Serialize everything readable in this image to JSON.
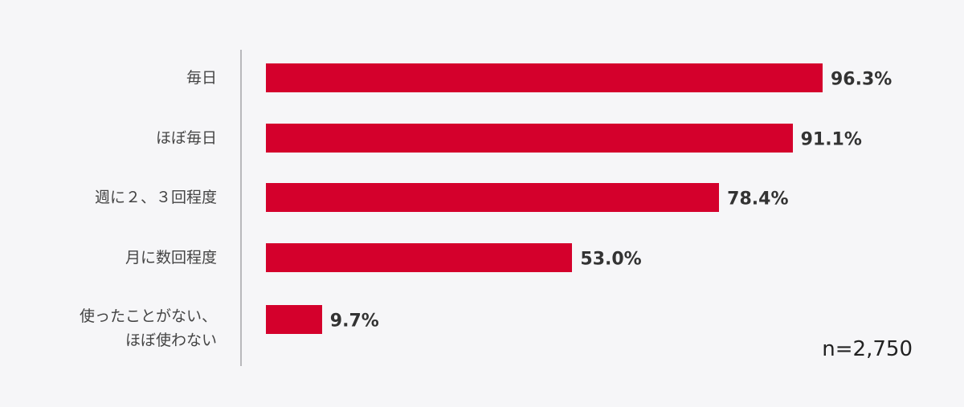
{
  "chart_data": {
    "type": "bar",
    "orientation": "horizontal",
    "categories": [
      "毎日",
      "ほぼ毎日",
      "週に２、３回程度",
      "月に数回程度",
      "使ったことがない、\nほぼ使わない"
    ],
    "values": [
      96.3,
      91.1,
      78.4,
      53.0,
      9.7
    ],
    "value_labels": [
      "96.3%",
      "91.1%",
      "78.4%",
      "53.0%",
      "9.7%"
    ],
    "color": "#d4002c",
    "annotation": "n=2,750"
  }
}
